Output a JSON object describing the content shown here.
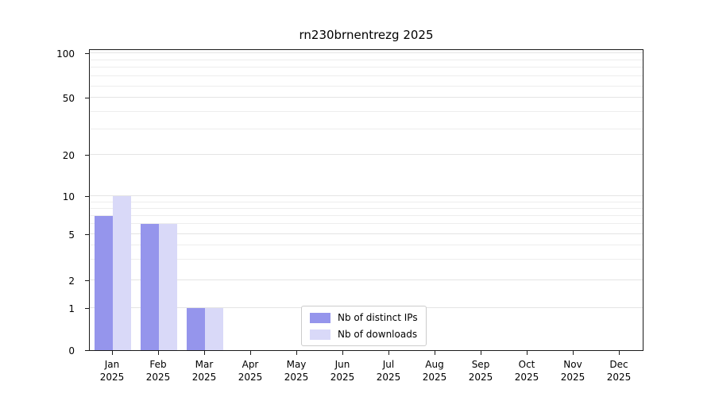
{
  "chart_data": {
    "type": "bar",
    "title": "rn230brnentrezg 2025",
    "categories": [
      "Jan",
      "Feb",
      "Mar",
      "Apr",
      "May",
      "Jun",
      "Jul",
      "Aug",
      "Sep",
      "Oct",
      "Nov",
      "Dec"
    ],
    "year": "2025",
    "series": [
      {
        "name": "Nb of distinct IPs",
        "color": "#9595ec",
        "values": [
          7,
          6,
          1,
          0,
          0,
          0,
          0,
          0,
          0,
          0,
          0,
          0
        ]
      },
      {
        "name": "Nb of downloads",
        "color": "#d9d9f8",
        "values": [
          10,
          6,
          1,
          0,
          0,
          0,
          0,
          0,
          0,
          0,
          0,
          0
        ]
      }
    ],
    "y_ticks": [
      0,
      1,
      2,
      5,
      10,
      20,
      50,
      100
    ],
    "ylim": [
      0,
      110
    ],
    "yscale": "symlog",
    "grid": "horizontal",
    "legend_position": "bottom-center"
  },
  "colors": {
    "background": "#ffffff",
    "grid_major": "#e4e4e4",
    "grid_minor": "#ededed",
    "axis": "#1a1a1a",
    "text": "#000000",
    "legend_border": "#cccccc"
  }
}
